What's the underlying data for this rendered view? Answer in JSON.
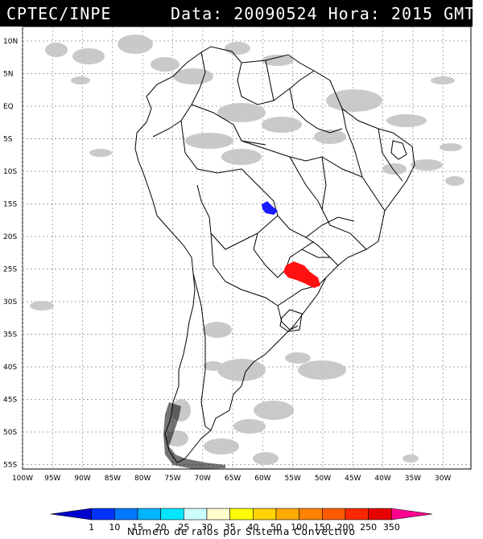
{
  "header": {
    "source": "CPTEC/INPE",
    "date_label": "Data:",
    "date": "20090524",
    "time_label": "Hora:",
    "time": "2015",
    "time_unit": "GMT"
  },
  "map": {
    "lat_labels": [
      "10N",
      "5N",
      "EQ",
      "5S",
      "10S",
      "15S",
      "20S",
      "25S",
      "30S",
      "35S",
      "40S",
      "45S",
      "50S",
      "55S"
    ],
    "lon_labels": [
      "100W",
      "95W",
      "90W",
      "85W",
      "80W",
      "75W",
      "70W",
      "65W",
      "60W",
      "55W",
      "50W",
      "45W",
      "40W",
      "35W",
      "30W"
    ],
    "colors": {
      "cloud": "#bdbdbd",
      "lightning_low": "#1a1aff",
      "lightning_high": "#ff0000",
      "grid": "#888888",
      "border": "#000000"
    }
  },
  "colorbar": {
    "ticks": [
      "1",
      "10",
      "15",
      "20",
      "25",
      "30",
      "35",
      "40",
      "50",
      "100",
      "150",
      "200",
      "250",
      "350"
    ],
    "colors": [
      "#0000cc",
      "#0033ff",
      "#0077ff",
      "#00b4ff",
      "#00e6ff",
      "#ccffff",
      "#ffffcc",
      "#ffff00",
      "#ffd200",
      "#ffaa00",
      "#ff8200",
      "#ff5a00",
      "#ff2800",
      "#e60000",
      "#ff0090"
    ],
    "caption": "Numero de raios por Sistema Convectivo"
  }
}
